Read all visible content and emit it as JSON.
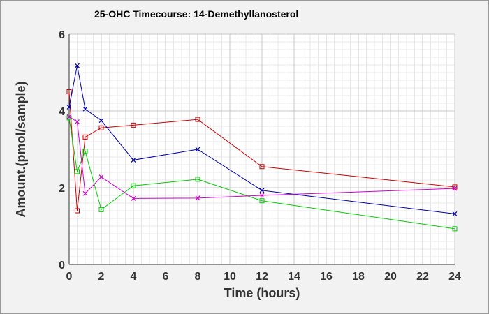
{
  "chart_data": {
    "type": "line",
    "title": "25-OHC Timecourse: 14-Demethyllanosterol",
    "xlabel": "Time (hours)",
    "ylabel": "Amount.(pmol/sample)",
    "xlim": [
      0,
      24
    ],
    "ylim": [
      0,
      6
    ],
    "x_ticks": [
      0,
      2,
      4,
      6,
      8,
      10,
      12,
      14,
      16,
      18,
      20,
      22,
      24
    ],
    "y_ticks": [
      0,
      2,
      4,
      6
    ],
    "grid": true,
    "legend": "none",
    "series": [
      {
        "color": "#cc0000",
        "marker": "square",
        "points": [
          [
            0,
            4.5
          ],
          [
            0.5,
            1.4
          ],
          [
            1,
            3.32
          ],
          [
            2,
            3.56
          ],
          [
            4,
            3.63
          ],
          [
            8,
            3.78
          ],
          [
            12,
            2.55
          ],
          [
            24,
            2.02
          ]
        ]
      },
      {
        "color": "#0000aa",
        "marker": "x",
        "points": [
          [
            0,
            4.1
          ],
          [
            0.5,
            5.18
          ],
          [
            1,
            4.05
          ],
          [
            2,
            3.75
          ],
          [
            4,
            2.72
          ],
          [
            8,
            3.0
          ],
          [
            12,
            1.93
          ],
          [
            24,
            1.32
          ]
        ]
      },
      {
        "color": "#00cc00",
        "marker": "square",
        "points": [
          [
            0,
            3.82
          ],
          [
            0.5,
            2.42
          ],
          [
            1,
            2.95
          ],
          [
            2,
            1.43
          ],
          [
            4,
            2.05
          ],
          [
            8,
            2.22
          ],
          [
            12,
            1.66
          ],
          [
            24,
            0.93
          ]
        ]
      },
      {
        "color": "#cc00cc",
        "marker": "x",
        "points": [
          [
            0,
            3.85
          ],
          [
            0.5,
            3.72
          ],
          [
            1,
            1.85
          ],
          [
            2,
            2.28
          ],
          [
            4,
            1.72
          ],
          [
            8,
            1.73
          ],
          [
            12,
            1.8
          ],
          [
            24,
            1.98
          ]
        ]
      }
    ]
  }
}
